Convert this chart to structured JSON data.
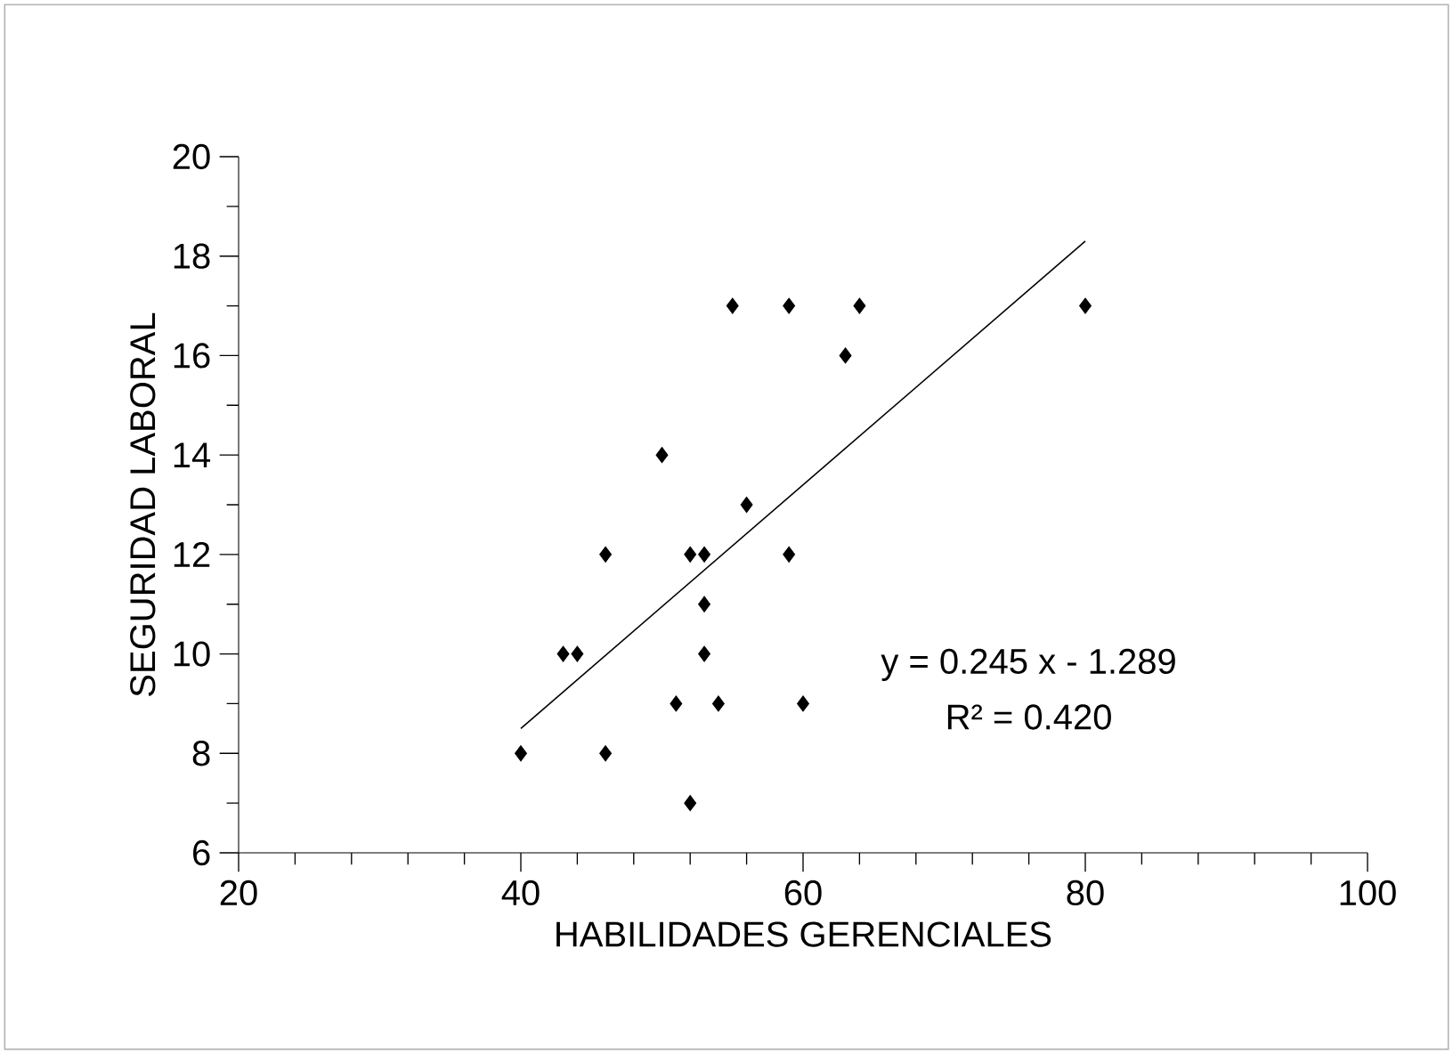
{
  "chart_data": {
    "type": "scatter",
    "xlabel": "HABILIDADES GERENCIALES",
    "ylabel": "SEGURIDAD LABORAL",
    "xlim": [
      20,
      100
    ],
    "xticks": [
      20,
      40,
      60,
      80,
      100
    ],
    "ylim": [
      6,
      20
    ],
    "yticks": [
      6,
      8,
      10,
      12,
      14,
      16,
      18,
      20
    ],
    "marker": "diamond",
    "grid": false,
    "series": [
      {
        "color": "#000000",
        "x": [
          40,
          43,
          44,
          46,
          46,
          50,
          51,
          52,
          52,
          53,
          53,
          53,
          54,
          55,
          56,
          59,
          59,
          60,
          63,
          64,
          80
        ],
        "values": [
          8,
          10,
          10,
          12,
          8,
          14,
          9,
          12,
          7,
          12,
          11,
          10,
          9,
          17,
          13,
          17,
          12,
          9,
          16,
          17,
          17
        ]
      },
      {
        "type": "line",
        "marker": "none",
        "color": "#000000",
        "x": [
          40,
          80
        ],
        "values": [
          8.5,
          18.3
        ]
      }
    ],
    "annotations": [
      "y = 0.245 x - 1.289",
      "R² = 0.420"
    ]
  }
}
